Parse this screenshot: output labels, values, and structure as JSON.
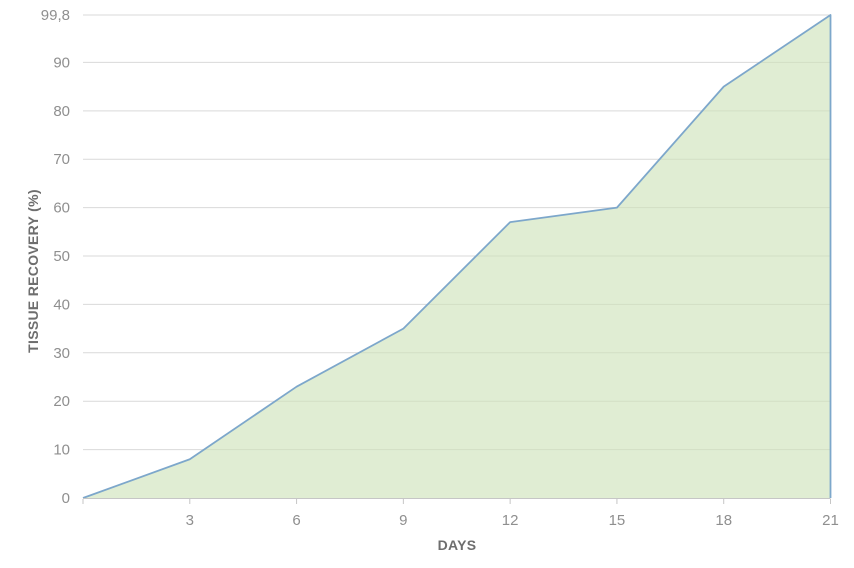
{
  "chart_data": {
    "type": "area",
    "title": "",
    "xlabel": "DAYS",
    "ylabel": "TISSUE RECOVERY (%)",
    "x": [
      0,
      3,
      6,
      9,
      12,
      15,
      18,
      21
    ],
    "values": [
      0,
      8,
      23,
      35,
      57,
      60,
      85,
      99.8
    ],
    "xlim": [
      0,
      21
    ],
    "ylim": [
      0,
      99.8
    ],
    "x_tick_days": [
      3,
      6,
      9,
      12,
      15,
      18,
      21
    ],
    "x_tick_labels": [
      "3",
      "6",
      "9",
      "12",
      "15",
      "18",
      "21"
    ],
    "x_minor_tick_days": [
      0,
      3,
      6,
      9,
      12,
      15,
      18,
      21
    ],
    "y_tick_values": [
      0,
      10,
      20,
      30,
      40,
      50,
      60,
      70,
      80,
      90,
      99.8
    ],
    "y_tick_labels": [
      "0",
      "10",
      "20",
      "30",
      "40",
      "50",
      "60",
      "70",
      "80",
      "90",
      "99,8"
    ],
    "grid": true,
    "legend": false,
    "colors": {
      "line": "#7da7cb",
      "fill_rgba": "rgba(205,226,184,0.62)",
      "gridline": "#d9d9d9",
      "axis_line": "#c6c6c6",
      "tick_mark": "#c6c6c6",
      "tick_label": "#8f8f8f",
      "axis_title": "#6e6e6e"
    }
  }
}
